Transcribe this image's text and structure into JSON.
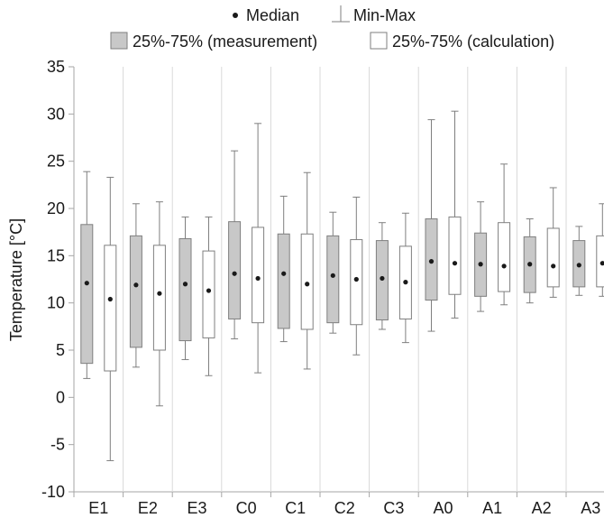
{
  "chart_data": {
    "type": "box",
    "title": "",
    "xlabel": "",
    "ylabel": "Temperature [°C]",
    "ylim": [
      -10,
      35
    ],
    "yticks": [
      -10,
      -5,
      0,
      5,
      10,
      15,
      20,
      25,
      30,
      35
    ],
    "grid": "vertical separators between categories",
    "legend": {
      "placement": "top-center",
      "median_label": "Median",
      "minmax_label": "Min-Max",
      "measurement_label": "25%-75% (measurement)",
      "calculation_label": "25%-75% (calculation)"
    },
    "colors": {
      "measurement": "#c8c8c8",
      "calculation": "#ffffff",
      "stroke": "#7f7f7f"
    },
    "categories": [
      "E1",
      "E2",
      "E3",
      "C0",
      "C1",
      "C2",
      "C3",
      "A0",
      "A1",
      "A2",
      "A3"
    ],
    "series": [
      {
        "name": "measurement",
        "min": [
          2.0,
          3.2,
          4.0,
          6.2,
          5.9,
          6.8,
          7.2,
          7.0,
          9.1,
          10.0,
          10.8
        ],
        "q1": [
          3.6,
          5.3,
          6.0,
          8.3,
          7.3,
          7.9,
          8.2,
          10.3,
          10.7,
          11.1,
          11.7
        ],
        "median": [
          12.1,
          11.9,
          12.0,
          13.1,
          13.1,
          12.9,
          12.6,
          14.4,
          14.1,
          14.1,
          14.0
        ],
        "q3": [
          18.3,
          17.1,
          16.8,
          18.6,
          17.3,
          17.1,
          16.6,
          18.9,
          17.4,
          17.0,
          16.6
        ],
        "max": [
          23.9,
          20.5,
          19.1,
          26.1,
          21.3,
          19.6,
          18.5,
          29.4,
          20.7,
          18.9,
          18.1
        ]
      },
      {
        "name": "calculation",
        "min": [
          -6.7,
          -0.9,
          2.3,
          2.6,
          3.0,
          4.5,
          5.8,
          8.4,
          9.8,
          10.6,
          10.7
        ],
        "q1": [
          2.8,
          5.0,
          6.3,
          7.9,
          7.2,
          7.7,
          8.3,
          10.9,
          11.2,
          11.7,
          11.7
        ],
        "median": [
          10.4,
          11.0,
          11.3,
          12.6,
          12.0,
          12.5,
          12.2,
          14.2,
          13.9,
          13.9,
          14.2
        ],
        "q3": [
          16.1,
          16.1,
          15.5,
          18.0,
          17.3,
          16.7,
          16.0,
          19.1,
          18.5,
          17.9,
          17.1
        ],
        "max": [
          23.3,
          20.7,
          19.1,
          29.0,
          23.8,
          21.2,
          19.5,
          30.3,
          24.7,
          22.2,
          20.5
        ]
      }
    ]
  }
}
